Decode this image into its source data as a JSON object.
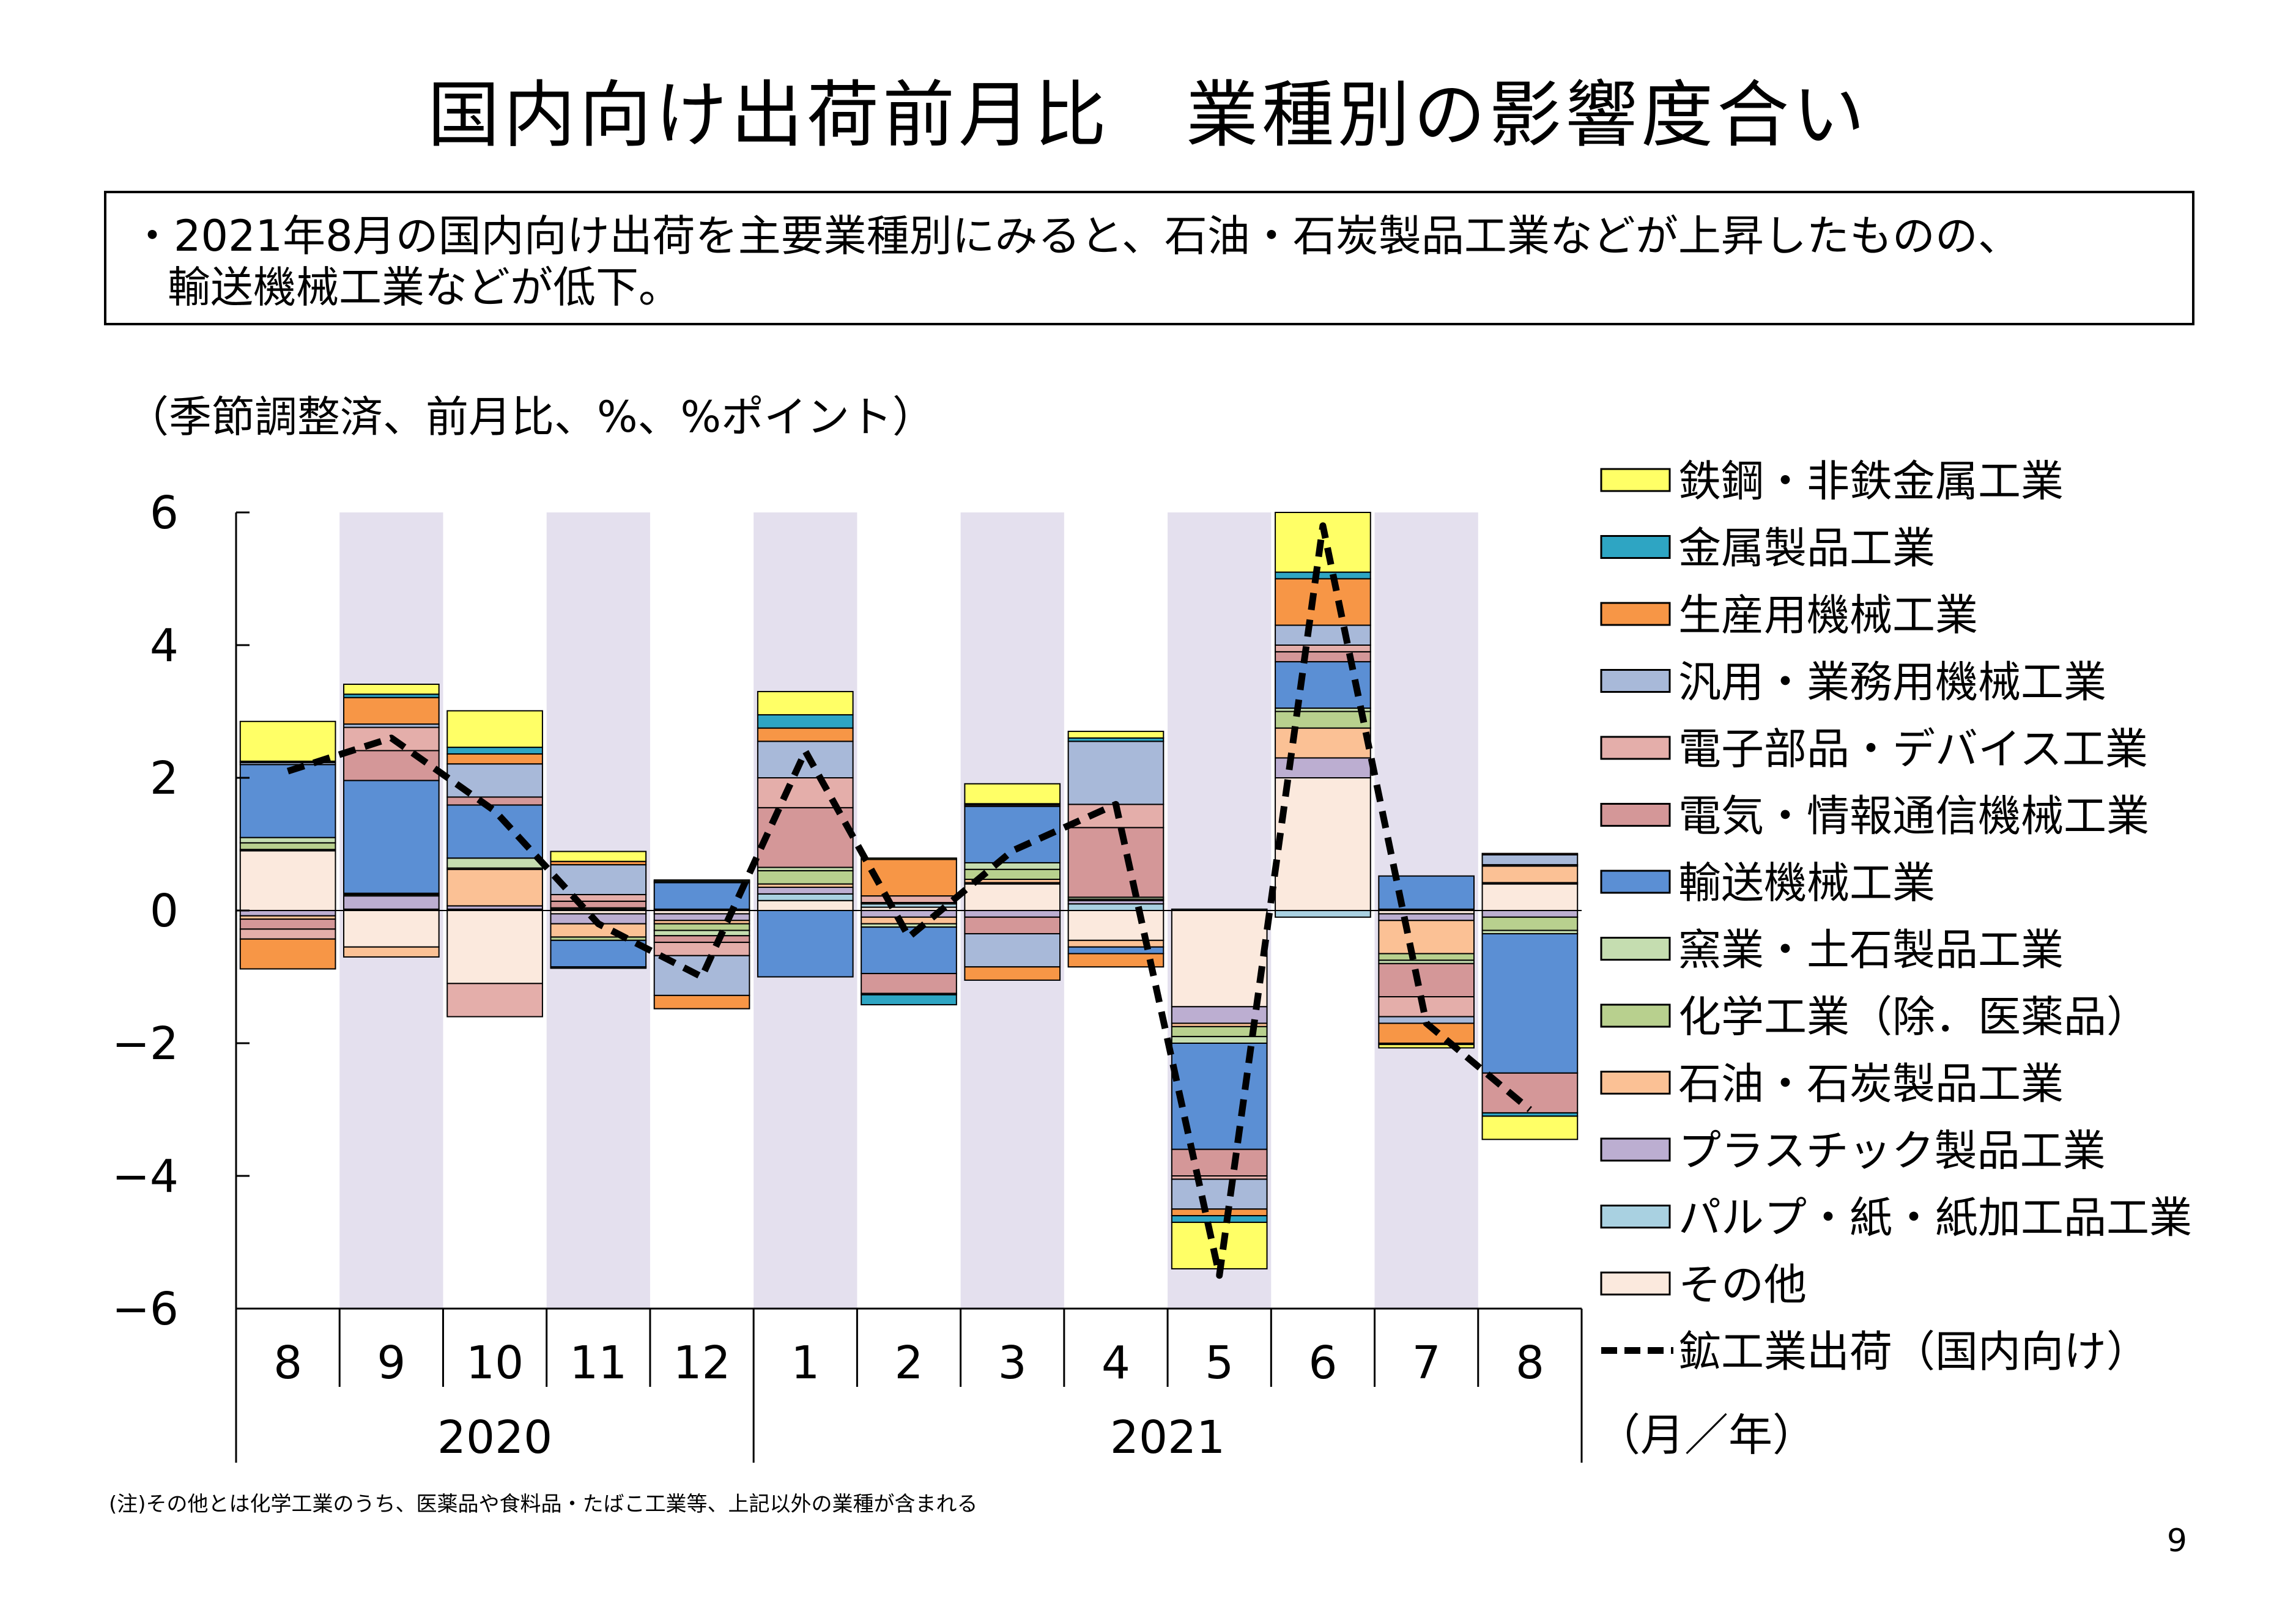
{
  "title": "国内向け出荷前月比　業種別の影響度合い",
  "summary": {
    "line1": "・2021年8月の国内向け出荷を主要業種別にみると、石油・石炭製品工業などが上昇したものの、",
    "line2": "輸送機械工業などが低下。"
  },
  "units_label": "（季節調整済、前月比、%、%ポイント）",
  "footnote": "(注)その他とは化学工業のうち、医薬品や食料品・たばこ工業等、上記以外の業種が含まれる",
  "page_number": "9",
  "chart_data": {
    "type": "bar",
    "stacked": true,
    "categories": [
      "8",
      "9",
      "10",
      "11",
      "12",
      "1",
      "2",
      "3",
      "4",
      "5",
      "6",
      "7",
      "8"
    ],
    "year_labels": [
      "2020",
      "2021"
    ],
    "year_groups": [
      {
        "label": "2020",
        "start": 0,
        "end": 4
      },
      {
        "label": "2021",
        "start": 5,
        "end": 12
      }
    ],
    "x_unit_label": "（月／年）",
    "ylim": [
      -6,
      6
    ],
    "yticks": [
      -6,
      -4,
      -2,
      0,
      2,
      4,
      6
    ],
    "ytick_labels": [
      "−6",
      "−4",
      "−2",
      "0",
      "2",
      "4",
      "6"
    ],
    "shaded_categories": [
      1,
      3,
      5,
      7,
      9,
      11
    ],
    "shade_color": "#e4e0ee",
    "legend_position": "right",
    "series": [
      {
        "name": "その他",
        "color": "#fbe9dd",
        "values": [
          0.9,
          -0.55,
          -1.1,
          -0.05,
          -0.05,
          0.15,
          0.05,
          0.4,
          -0.45,
          -1.45,
          2.0,
          -0.05,
          0.4
        ]
      },
      {
        "name": "パルプ・紙・紙加工品工業",
        "color": "#a9d1e1",
        "values": [
          0.02,
          0.02,
          0.02,
          0.02,
          0.02,
          0.1,
          0.05,
          0.02,
          0.1,
          0.02,
          -0.1,
          0.02,
          0.02
        ]
      },
      {
        "name": "プラスチック製品工業",
        "color": "#bcaed1",
        "values": [
          -0.08,
          0.2,
          0.05,
          -0.15,
          -0.1,
          0.1,
          -0.1,
          -0.1,
          0.05,
          -0.25,
          0.3,
          -0.1,
          -0.1
        ]
      },
      {
        "name": "石油・石炭製品工業",
        "color": "#fbc195",
        "values": [
          -0.05,
          -0.15,
          0.55,
          -0.2,
          -0.05,
          0.05,
          -0.1,
          0.05,
          -0.1,
          -0.05,
          0.45,
          -0.5,
          0.25
        ]
      },
      {
        "name": "化学工業（除．医薬品）",
        "color": "#b8d08e",
        "values": [
          0.1,
          0.02,
          0.02,
          -0.05,
          -0.1,
          0.2,
          0.02,
          0.15,
          0.02,
          -0.15,
          0.25,
          -0.1,
          -0.2
        ]
      },
      {
        "name": "窯業・土石製品工業",
        "color": "#c5ddb0",
        "values": [
          0.08,
          0.02,
          0.15,
          0.02,
          -0.08,
          0.05,
          -0.05,
          0.1,
          0.03,
          -0.1,
          0.05,
          -0.05,
          -0.05
        ]
      },
      {
        "name": "輸送機械工業",
        "color": "#5b8fd4",
        "values": [
          1.1,
          1.7,
          0.8,
          -0.4,
          0.4,
          -1.0,
          -0.7,
          0.85,
          -0.1,
          -1.6,
          0.7,
          0.5,
          -2.1
        ]
      },
      {
        "name": "電気・情報通信機械工業",
        "color": "#d49798",
        "values": [
          -0.15,
          0.45,
          0.12,
          0.1,
          -0.1,
          0.9,
          -0.3,
          -0.25,
          1.05,
          -0.4,
          0.15,
          -0.5,
          -0.6
        ]
      },
      {
        "name": "電子部品・デバイス工業",
        "color": "#e4aeaa",
        "values": [
          -0.15,
          0.35,
          -0.5,
          0.1,
          -0.2,
          0.45,
          0.1,
          0.02,
          0.35,
          -0.05,
          0.1,
          -0.3,
          0.02
        ]
      },
      {
        "name": "汎用・業務用機械工業",
        "color": "#a8b9d9",
        "values": [
          0.03,
          0.05,
          0.5,
          0.45,
          -0.6,
          0.55,
          -0.02,
          -0.5,
          0.95,
          -0.45,
          0.3,
          -0.1,
          0.15
        ]
      },
      {
        "name": "生産用機械工業",
        "color": "#f79646",
        "values": [
          -0.45,
          0.4,
          0.15,
          0.05,
          -0.2,
          0.2,
          0.55,
          -0.2,
          -0.2,
          -0.1,
          0.7,
          -0.3,
          0.02
        ]
      },
      {
        "name": "金属製品工業",
        "color": "#2ea5c3",
        "values": [
          0.02,
          0.05,
          0.1,
          -0.02,
          0.02,
          0.2,
          -0.15,
          0.02,
          0.05,
          -0.1,
          0.1,
          -0.02,
          -0.05
        ]
      },
      {
        "name": "鉄鋼・非鉄金属工業",
        "color": "#ffff66",
        "values": [
          0.6,
          0.15,
          0.55,
          0.15,
          0.02,
          0.35,
          0.02,
          0.3,
          0.1,
          -0.7,
          0.9,
          -0.05,
          -0.35
        ]
      }
    ],
    "line_series": {
      "name": "鉱工業出荷（国内向け）",
      "color": "#000000",
      "style": "dashed",
      "values": [
        2.1,
        2.6,
        1.5,
        -0.2,
        -1.0,
        2.4,
        -0.4,
        0.9,
        1.6,
        -5.5,
        5.8,
        -1.7,
        -3.0
      ]
    },
    "legend_order": [
      "鉄鋼・非鉄金属工業",
      "金属製品工業",
      "生産用機械工業",
      "汎用・業務用機械工業",
      "電子部品・デバイス工業",
      "電気・情報通信機械工業",
      "輸送機械工業",
      "窯業・土石製品工業",
      "化学工業（除．医薬品）",
      "石油・石炭製品工業",
      "プラスチック製品工業",
      "パルプ・紙・紙加工品工業",
      "その他",
      "鉱工業出荷（国内向け）"
    ]
  }
}
